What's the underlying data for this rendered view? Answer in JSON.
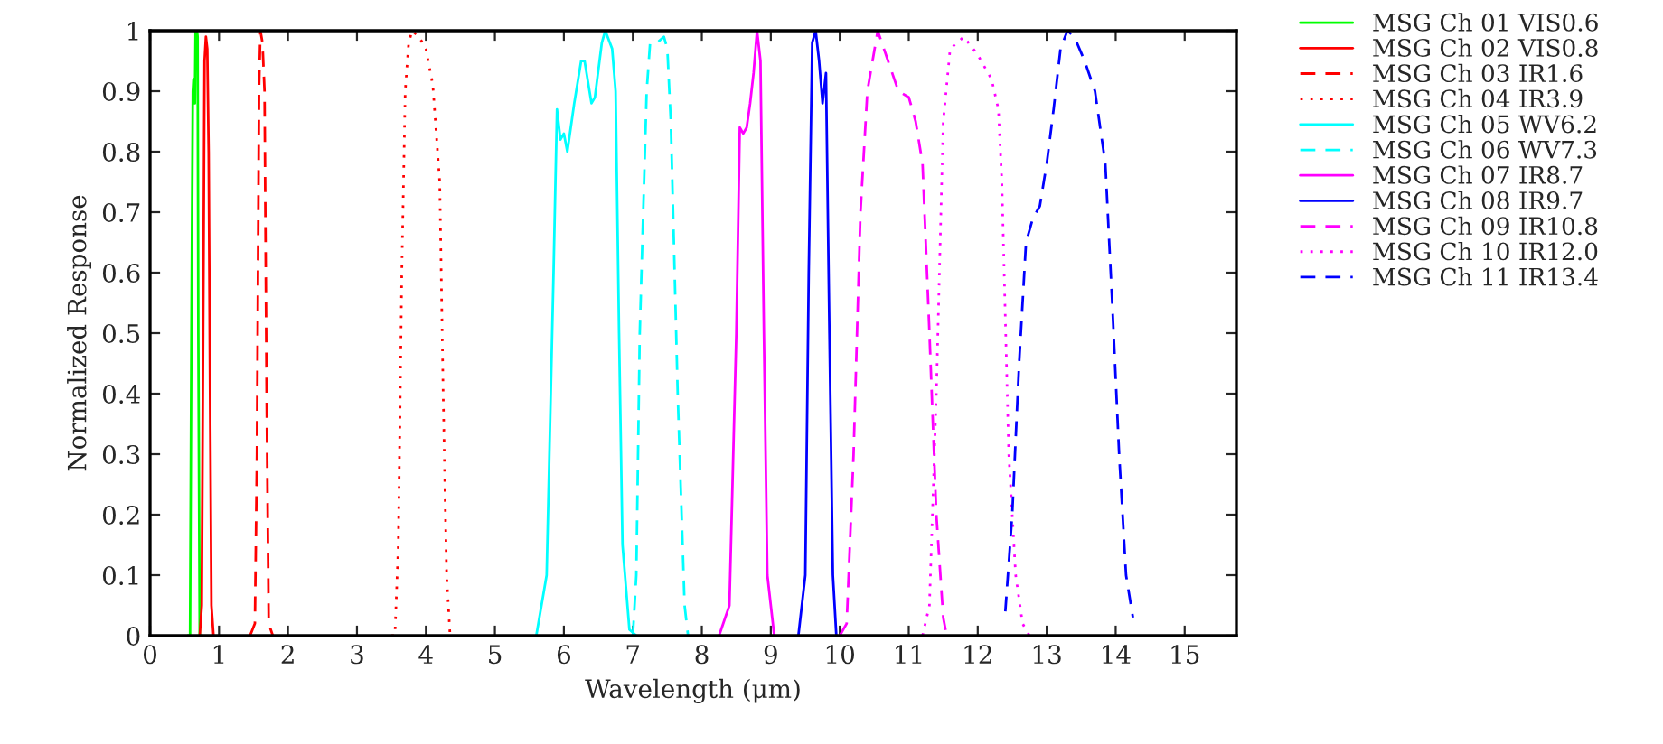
{
  "chart_data": {
    "type": "line",
    "xlabel": "Wavelength (μm)",
    "ylabel": "Normalized Response",
    "xlim": [
      0,
      15.75
    ],
    "ylim": [
      0,
      1
    ],
    "xticks": [
      0,
      1,
      2,
      3,
      4,
      5,
      6,
      7,
      8,
      9,
      10,
      11,
      12,
      13,
      14,
      15
    ],
    "yticks": [
      0,
      0.1,
      0.2,
      0.3,
      0.4,
      0.5,
      0.6,
      0.7,
      0.8,
      0.9,
      1
    ],
    "grid": false,
    "legend": "right",
    "marker": "none",
    "series": [
      {
        "name": "MSG Ch 01 VIS0.6",
        "color": "#00ff00",
        "line_style": "solid",
        "x": [
          0.55,
          0.58,
          0.6,
          0.62,
          0.63,
          0.65,
          0.66,
          0.68,
          0.69,
          0.7,
          0.72,
          0.75
        ],
        "values": [
          0,
          0,
          0.5,
          0.9,
          0.92,
          0.88,
          1.0,
          1.0,
          0.99,
          0.5,
          0,
          0
        ]
      },
      {
        "name": "MSG Ch 02 VIS0.8",
        "color": "#ff0000",
        "line_style": "solid",
        "x": [
          0.72,
          0.75,
          0.77,
          0.79,
          0.81,
          0.83,
          0.85,
          0.87,
          0.89,
          0.92
        ],
        "values": [
          0,
          0.05,
          0.5,
          0.95,
          0.99,
          0.97,
          0.8,
          0.4,
          0.05,
          0
        ]
      },
      {
        "name": "MSG Ch 03 IR1.6",
        "color": "#ff0000",
        "line_style": "dashed",
        "x": [
          1.45,
          1.52,
          1.55,
          1.58,
          1.6,
          1.63,
          1.66,
          1.69,
          1.72,
          1.78
        ],
        "values": [
          0,
          0.02,
          0.3,
          0.9,
          1.0,
          0.98,
          0.9,
          0.4,
          0.02,
          0
        ]
      },
      {
        "name": "MSG Ch 04 IR3.9",
        "color": "#ff0000",
        "line_style": "dotted",
        "x": [
          3.5,
          3.55,
          3.6,
          3.65,
          3.7,
          3.75,
          3.8,
          3.9,
          4.0,
          4.1,
          4.2,
          4.25,
          4.3,
          4.35,
          4.4
        ],
        "values": [
          0,
          0.0,
          0.15,
          0.6,
          0.9,
          0.98,
          1.0,
          0.99,
          0.97,
          0.91,
          0.75,
          0.4,
          0.1,
          0.0,
          0
        ]
      },
      {
        "name": "MSG Ch 05 WV6.2",
        "color": "#00ffff",
        "line_style": "solid",
        "x": [
          5.6,
          5.75,
          5.85,
          5.9,
          5.95,
          6.0,
          6.05,
          6.15,
          6.25,
          6.3,
          6.4,
          6.45,
          6.55,
          6.6,
          6.7,
          6.75,
          6.8,
          6.85,
          6.95,
          7.05
        ],
        "values": [
          0,
          0.1,
          0.6,
          0.87,
          0.82,
          0.83,
          0.8,
          0.88,
          0.95,
          0.95,
          0.88,
          0.89,
          0.98,
          1.0,
          0.97,
          0.9,
          0.5,
          0.15,
          0.01,
          0
        ]
      },
      {
        "name": "MSG Ch 06 WV7.3",
        "color": "#00ffff",
        "line_style": "dashed",
        "x": [
          7.0,
          7.05,
          7.1,
          7.2,
          7.25,
          7.35,
          7.45,
          7.5,
          7.55,
          7.65,
          7.75,
          7.8
        ],
        "values": [
          0,
          0.1,
          0.5,
          0.9,
          0.98,
          0.98,
          0.99,
          0.97,
          0.85,
          0.4,
          0.05,
          0
        ]
      },
      {
        "name": "MSG Ch 07 IR8.7",
        "color": "#ff00ff",
        "line_style": "solid",
        "x": [
          8.25,
          8.4,
          8.5,
          8.55,
          8.6,
          8.65,
          8.7,
          8.75,
          8.8,
          8.85,
          8.9,
          8.95,
          9.05
        ],
        "values": [
          0,
          0.05,
          0.5,
          0.84,
          0.83,
          0.84,
          0.88,
          0.93,
          1.0,
          0.95,
          0.5,
          0.1,
          0
        ]
      },
      {
        "name": "MSG Ch 08 IR9.7",
        "color": "#0000ff",
        "line_style": "solid",
        "x": [
          9.4,
          9.5,
          9.55,
          9.6,
          9.65,
          9.7,
          9.75,
          9.8,
          9.85,
          9.9,
          9.95
        ],
        "values": [
          0,
          0.1,
          0.6,
          0.98,
          1.0,
          0.95,
          0.88,
          0.93,
          0.5,
          0.1,
          0
        ]
      },
      {
        "name": "MSG Ch 09 IR10.8",
        "color": "#ff00ff",
        "line_style": "dashed",
        "x": [
          10.0,
          10.1,
          10.2,
          10.3,
          10.4,
          10.55,
          10.7,
          10.85,
          11.0,
          11.1,
          11.2,
          11.3,
          11.4,
          11.5,
          11.55
        ],
        "values": [
          0,
          0.02,
          0.3,
          0.7,
          0.9,
          1.0,
          0.95,
          0.9,
          0.89,
          0.85,
          0.78,
          0.5,
          0.2,
          0.03,
          0
        ]
      },
      {
        "name": "MSG Ch 10 IR12.0",
        "color": "#ff00ff",
        "line_style": "dotted",
        "x": [
          11.2,
          11.3,
          11.4,
          11.5,
          11.6,
          11.8,
          12.0,
          12.2,
          12.3,
          12.35,
          12.45,
          12.55,
          12.65,
          12.75
        ],
        "values": [
          0,
          0.05,
          0.4,
          0.85,
          0.97,
          0.99,
          0.96,
          0.92,
          0.87,
          0.75,
          0.3,
          0.1,
          0.02,
          0
        ]
      },
      {
        "name": "MSG Ch 11 IR13.4",
        "color": "#0000ff",
        "line_style": "dashed",
        "x": [
          12.4,
          12.5,
          12.6,
          12.7,
          12.8,
          12.9,
          13.0,
          13.1,
          13.2,
          13.3,
          13.4,
          13.55,
          13.7,
          13.85,
          13.95,
          14.05,
          14.15,
          14.25
        ],
        "values": [
          0.04,
          0.2,
          0.45,
          0.65,
          0.69,
          0.71,
          0.78,
          0.87,
          0.97,
          1.0,
          0.99,
          0.95,
          0.9,
          0.78,
          0.55,
          0.3,
          0.1,
          0.03
        ]
      }
    ]
  }
}
